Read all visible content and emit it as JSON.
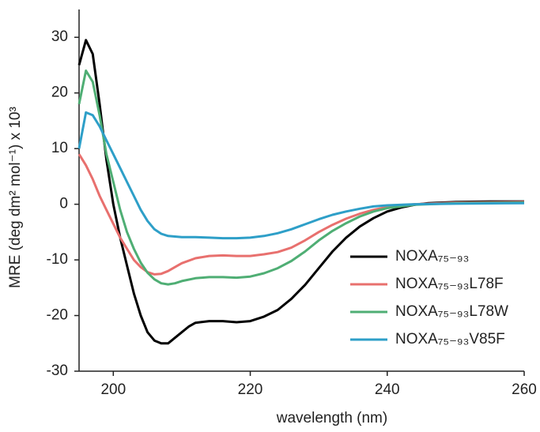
{
  "chart_data": {
    "type": "line",
    "xlabel": "wavelength (nm)",
    "ylabel": "MRE (deg dm² mol⁻¹) x 10³",
    "xlim": [
      195,
      260
    ],
    "xticks": [
      200,
      220,
      240,
      260
    ],
    "ylim": [
      -30,
      35
    ],
    "yticks": [
      -30,
      -20,
      -10,
      0,
      10,
      20,
      30
    ],
    "legend": "lower-right",
    "series": [
      {
        "name": "NOXA₇₅₋₉₃",
        "color": "#000000",
        "x": [
          195,
          196,
          197,
          198,
          199,
          200,
          201,
          202,
          203,
          204,
          205,
          206,
          207,
          208,
          209,
          210,
          211,
          212,
          214,
          216,
          218,
          220,
          222,
          224,
          226,
          228,
          230,
          232,
          234,
          236,
          238,
          240,
          242,
          244,
          246,
          250,
          255,
          260
        ],
        "values": [
          25,
          29.5,
          27,
          18,
          8,
          0,
          -6,
          -11,
          -16,
          -20,
          -23,
          -24.5,
          -25,
          -25,
          -24,
          -23,
          -22,
          -21.3,
          -21,
          -21,
          -21.2,
          -21,
          -20.2,
          -19,
          -17,
          -14.5,
          -11.5,
          -8.5,
          -6,
          -4,
          -2.5,
          -1.3,
          -0.6,
          -0.1,
          0.2,
          0.4,
          0.5,
          0.5
        ]
      },
      {
        "name": "NOXA₇₅₋₉₃L78F",
        "color": "#e8706e",
        "x": [
          195,
          196,
          197,
          198,
          199,
          200,
          201,
          202,
          203,
          204,
          205,
          206,
          207,
          208,
          209,
          210,
          212,
          214,
          216,
          218,
          220,
          222,
          224,
          226,
          228,
          230,
          232,
          234,
          236,
          238,
          240,
          244,
          250,
          260
        ],
        "values": [
          9,
          7,
          4.5,
          1.5,
          -1,
          -3.5,
          -6,
          -8,
          -10,
          -11.3,
          -12.2,
          -12.6,
          -12.5,
          -12,
          -11.3,
          -10.6,
          -9.7,
          -9.3,
          -9.2,
          -9.3,
          -9.3,
          -9,
          -8.6,
          -7.8,
          -6.5,
          -5,
          -3.7,
          -2.6,
          -1.7,
          -1,
          -0.5,
          0,
          0.3,
          0.4
        ]
      },
      {
        "name": "NOXA₇₅₋₉₃L78W",
        "color": "#4fae74",
        "x": [
          195,
          196,
          197,
          198,
          199,
          200,
          201,
          202,
          203,
          204,
          205,
          206,
          207,
          208,
          209,
          210,
          212,
          214,
          216,
          218,
          220,
          222,
          224,
          226,
          228,
          230,
          232,
          234,
          236,
          238,
          240,
          244,
          250,
          260
        ],
        "values": [
          18,
          24,
          22,
          16,
          9,
          4,
          -1,
          -5,
          -8,
          -10.5,
          -12.3,
          -13.5,
          -14.2,
          -14.4,
          -14.2,
          -13.8,
          -13.3,
          -13.1,
          -13.1,
          -13.2,
          -13,
          -12.4,
          -11.5,
          -10.2,
          -8.5,
          -6.5,
          -4.8,
          -3.4,
          -2.2,
          -1.3,
          -0.7,
          -0.1,
          0.2,
          0.3
        ]
      },
      {
        "name": "NOXA₇₅₋₉₃V85F",
        "color": "#2e9fc8",
        "x": [
          195,
          196,
          197,
          198,
          199,
          200,
          201,
          202,
          203,
          204,
          205,
          206,
          207,
          208,
          210,
          212,
          214,
          216,
          218,
          220,
          222,
          224,
          226,
          228,
          230,
          232,
          234,
          236,
          238,
          240,
          244,
          250,
          260
        ],
        "values": [
          10,
          16.5,
          16,
          14,
          11.5,
          9,
          6.5,
          4,
          1.5,
          -1,
          -3,
          -4.5,
          -5.3,
          -5.7,
          -5.9,
          -5.9,
          -6,
          -6.1,
          -6.1,
          -6,
          -5.7,
          -5.2,
          -4.5,
          -3.6,
          -2.7,
          -1.9,
          -1.3,
          -0.8,
          -0.4,
          -0.2,
          0,
          0.1,
          0.2
        ]
      }
    ]
  }
}
